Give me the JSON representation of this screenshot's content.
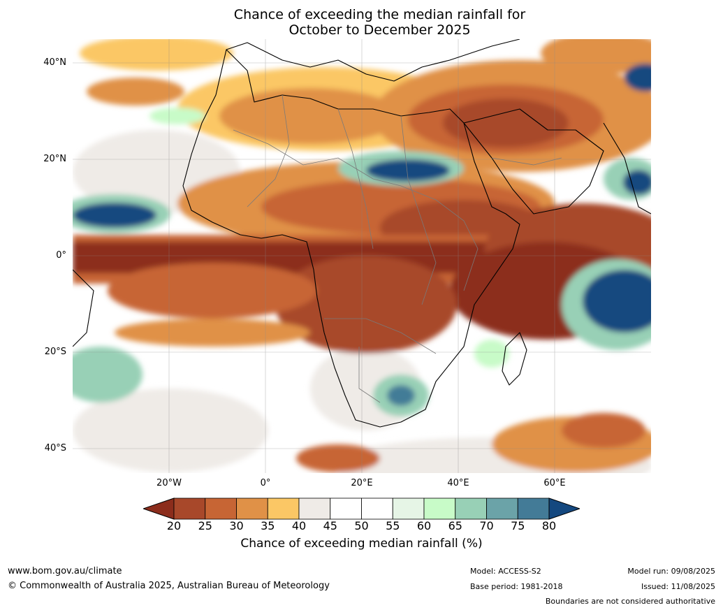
{
  "title": {
    "line1": "Chance of exceeding the median rainfall for",
    "line2": "October to December 2025"
  },
  "map": {
    "region": "Africa, Middle East and Indian Ocean",
    "lat_range": [
      -45,
      45
    ],
    "lon_range": [
      -40,
      80
    ],
    "lat_labels": [
      "40°N",
      "20°N",
      "0°",
      "20°S",
      "40°S"
    ],
    "lon_labels": [
      "20°W",
      "0°",
      "20°E",
      "40°E",
      "60°E"
    ]
  },
  "colorbar": {
    "ticks": [
      "20",
      "25",
      "30",
      "35",
      "40",
      "45",
      "50",
      "55",
      "60",
      "65",
      "70",
      "75",
      "80"
    ],
    "colors": [
      "#8c2d1c",
      "#a8482a",
      "#c76534",
      "#e09147",
      "#fbc765",
      "#efebe7",
      "#ffffff",
      "#ffffff",
      "#e6f5e6",
      "#c8fbc8",
      "#98d0b6",
      "#6ba3a8",
      "#437b97",
      "#14487f"
    ],
    "label": "Chance of exceeding median rainfall (%)"
  },
  "footer": {
    "website": "www.bom.gov.au/climate",
    "copyright": "© Commonwealth of Australia 2025, Australian Bureau of Meteorology",
    "model": "Model: ACCESS-S2",
    "base_period": "Base period: 1981-2018",
    "model_run": "Model run: 09/08/2025",
    "issued": "Issued: 11/08/2025",
    "disclaimer": "Boundaries are not considered authoritative"
  }
}
